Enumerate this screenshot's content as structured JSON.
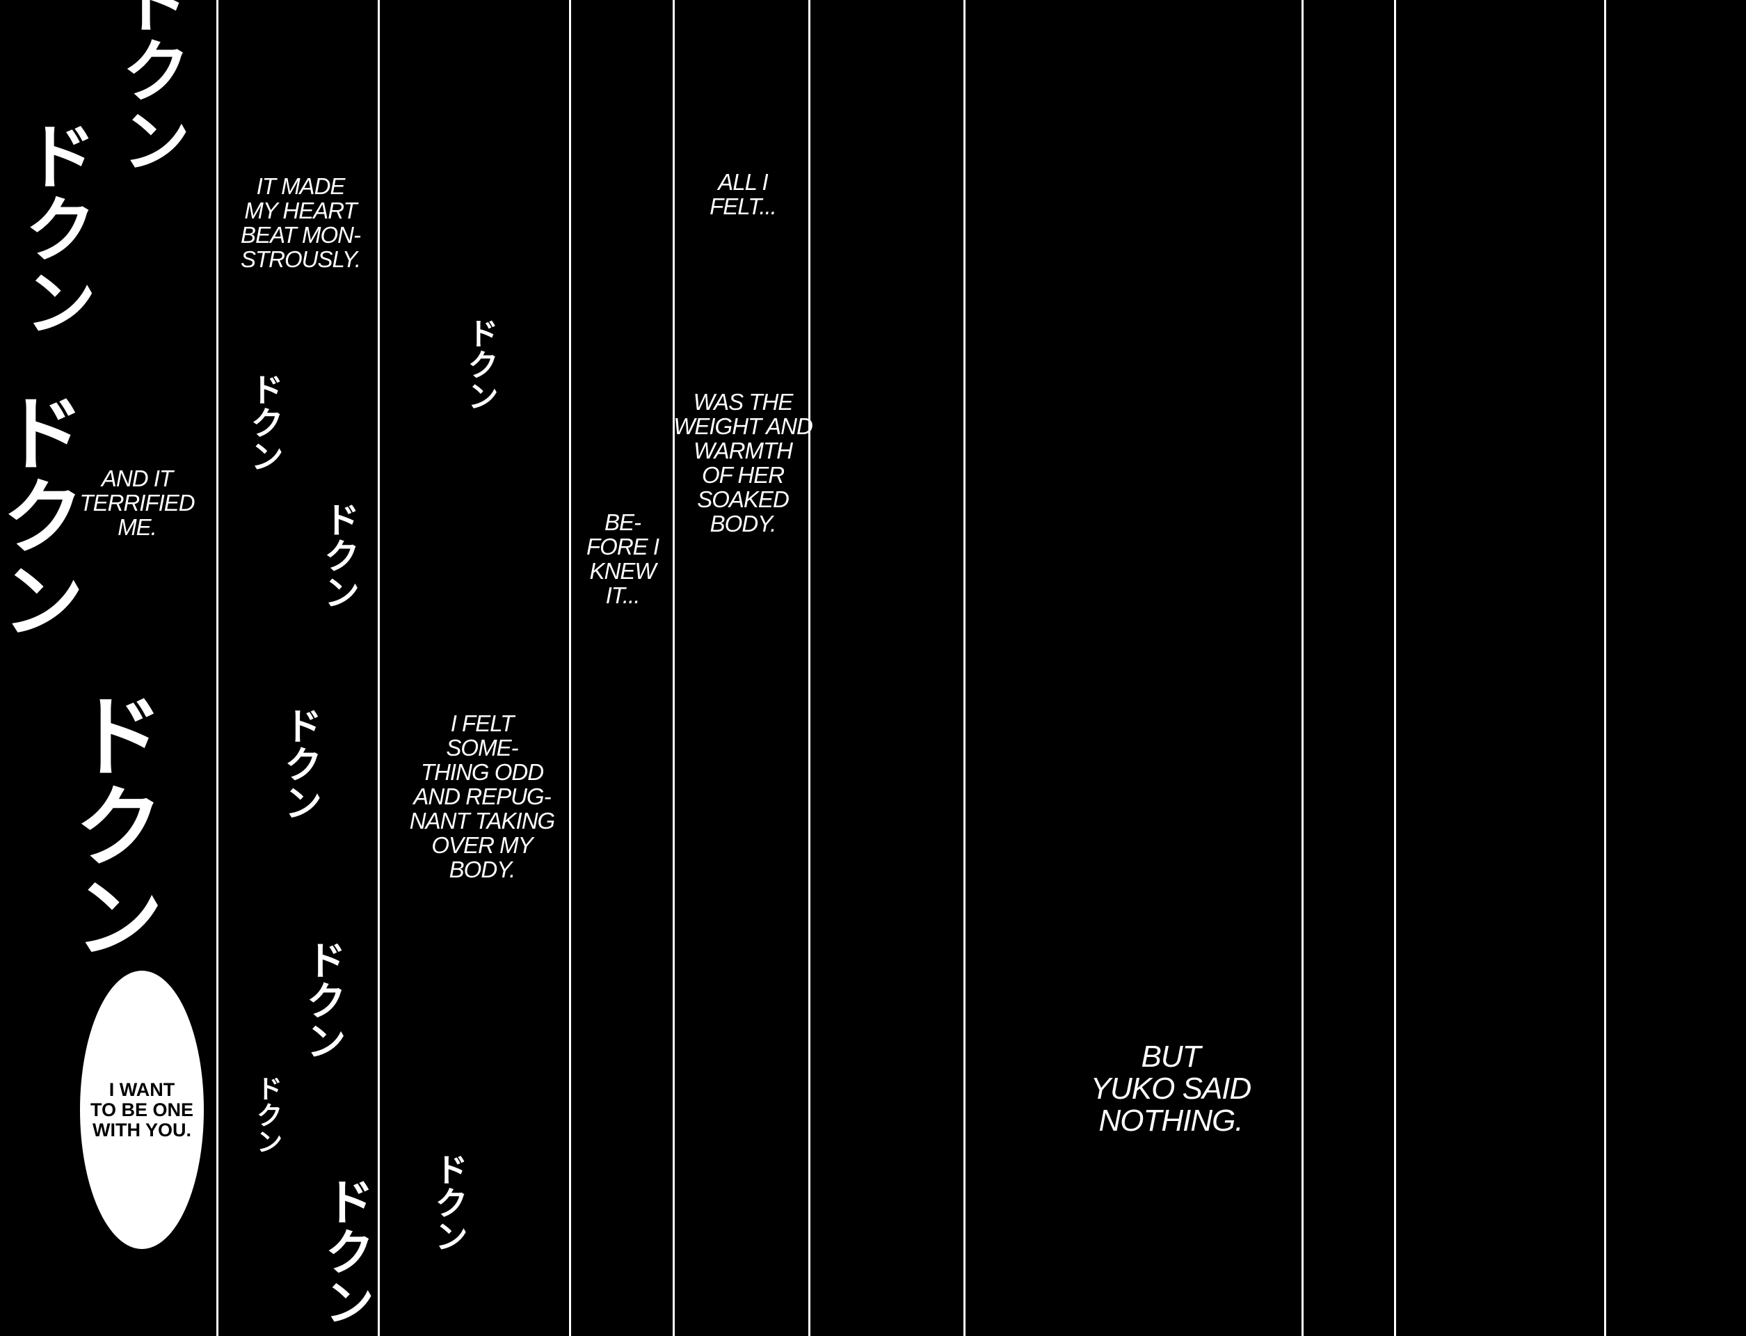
{
  "narration": [
    {
      "id": "it-made-my-heart",
      "text": "IT MADE\nMY HEART\nBEAT MON-\nSTROUSLY."
    },
    {
      "id": "and-it-terrified",
      "text": "AND IT\nTERRIFIED\nME."
    },
    {
      "id": "all-i-felt",
      "text": "ALL I\nFELT..."
    },
    {
      "id": "weight-and-warmth",
      "text": "WAS THE\nWEIGHT AND\nWARMTH\nOF HER\nSOAKED\nBODY."
    },
    {
      "id": "before-i-knew",
      "text": "BE-\nFORE I\nKNEW\nIT..."
    },
    {
      "id": "i-felt-something",
      "text": "I FELT\nSOME-\nTHING ODD\nAND REPUG-\nNANT TAKING\nOVER MY\nBODY."
    },
    {
      "id": "yuko-said-nothing",
      "text": "BUT\nYUKO SAID\nNOTHING."
    }
  ],
  "speech_bubble": {
    "text": "I WANT\nTO BE ONE\nWITH YOU."
  },
  "sound_effect": "ドクン",
  "colors": {
    "background": "#000000",
    "text": "#ffffff",
    "bubble": "#ffffff",
    "bubble_text": "#000000"
  }
}
